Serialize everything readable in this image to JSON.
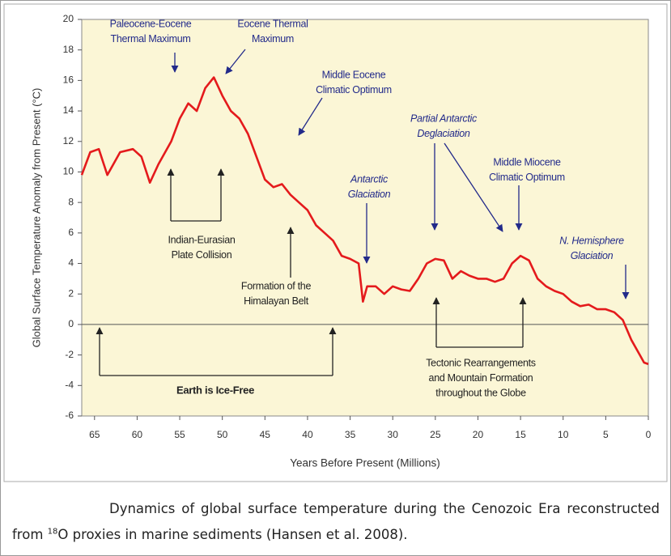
{
  "chart_data": {
    "type": "line",
    "x_label": "Years Before Present (Millions)",
    "y_label": "Global Surface Temperature Anomaly from Present (°C)",
    "xlim": [
      66.5,
      0
    ],
    "ylim": [
      -6,
      20
    ],
    "xticks": [
      65,
      60,
      55,
      50,
      45,
      40,
      35,
      30,
      25,
      20,
      15,
      10,
      5,
      0
    ],
    "yticks": [
      -6,
      -4,
      -2,
      0,
      2,
      4,
      6,
      8,
      10,
      12,
      14,
      16,
      18,
      20
    ],
    "background": "#fbf6d6",
    "series": [
      {
        "color": "#e41a1c",
        "x": [
          66.5,
          65.5,
          64.5,
          63.5,
          62,
          60.5,
          59.5,
          58.5,
          57.5,
          56,
          55,
          54,
          53,
          52,
          51,
          50,
          49,
          48,
          47,
          46,
          45,
          44,
          43,
          42,
          41,
          40,
          39,
          38,
          37,
          36,
          35,
          34,
          33.5,
          33,
          32,
          31,
          30,
          29,
          28,
          27,
          26,
          25,
          24,
          23,
          22,
          21,
          20,
          19,
          18,
          17,
          16,
          15,
          14,
          13,
          12,
          11,
          10,
          9,
          8,
          7,
          6,
          5,
          4,
          3,
          2,
          1,
          0.5,
          0
        ],
        "values": [
          9.8,
          11.3,
          11.5,
          9.8,
          11.3,
          11.5,
          11.0,
          9.3,
          10.5,
          12,
          13.5,
          14.5,
          14,
          15.5,
          16.2,
          15,
          14,
          13.5,
          12.5,
          11,
          9.5,
          9,
          9.2,
          8.5,
          8,
          7.5,
          6.5,
          6,
          5.5,
          4.5,
          4.3,
          4,
          1.5,
          2.5,
          2.5,
          2,
          2.5,
          2.3,
          2.2,
          3,
          4,
          4.3,
          4.2,
          3,
          3.5,
          3.2,
          3,
          3,
          2.8,
          3,
          4,
          4.5,
          4.2,
          3,
          2.5,
          2.2,
          2,
          1.5,
          1.2,
          1.3,
          1,
          1,
          0.8,
          0.3,
          -1,
          -2,
          -2.5,
          -2.6
        ]
      }
    ],
    "annotations": [
      {
        "lines": [
          "Paleocene-Eocene",
          "Thermal Maximum"
        ]
      },
      {
        "lines": [
          "Eocene Thermal",
          "Maximum"
        ]
      },
      {
        "lines": [
          "Middle Eocene",
          "Climatic Optimum"
        ]
      },
      {
        "lines": [
          "Antarctic",
          "Glaciation"
        ]
      },
      {
        "lines": [
          "Partial Antarctic",
          "Deglaciation"
        ]
      },
      {
        "lines": [
          "Middle Miocene",
          "Climatic Optimum"
        ]
      },
      {
        "lines": [
          "N. Hemisphere",
          "Glaciation"
        ]
      },
      {
        "lines": [
          "Indian-Eurasian",
          "Plate Collision"
        ]
      },
      {
        "lines": [
          "Formation of the",
          "Himalayan Belt"
        ]
      },
      {
        "lines": [
          "Earth is Ice-Free"
        ]
      },
      {
        "lines": [
          "Tectonic Rearrangements",
          "and Mountain Formation",
          "throughout the Globe"
        ]
      }
    ]
  },
  "caption": [
    "Dynamics of global surface temperature during the Cenozoic Era reconstructed from ",
    "18",
    "O proxies in marine sediments (Hansen et al. 2008)."
  ]
}
